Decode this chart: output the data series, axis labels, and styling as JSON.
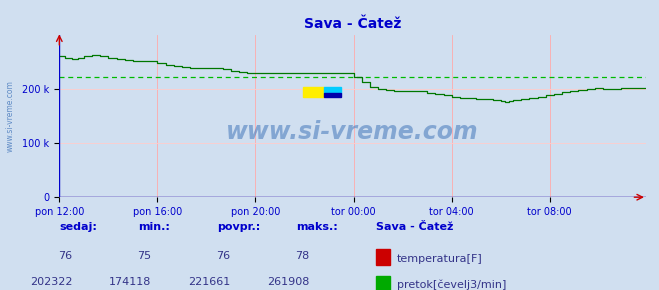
{
  "title": "Sava - Čatež",
  "title_color": "#0000cc",
  "bg_color": "#d0dff0",
  "x_labels": [
    "pon 12:00",
    "pon 16:00",
    "pon 20:00",
    "tor 00:00",
    "tor 04:00",
    "tor 08:00"
  ],
  "ylim": [
    0,
    300000
  ],
  "y_tick_vals": [
    0,
    100000,
    200000
  ],
  "y_tick_labels": [
    "0",
    "100 k",
    "200 k"
  ],
  "grid_color_v": "#ffaaaa",
  "grid_color_h": "#ffcccc",
  "avg_line_color": "#00bb00",
  "avg_line_value": 221661,
  "watermark": "www.si-vreme.com",
  "watermark_color": "#4477bb",
  "line_color_flow": "#007700",
  "line_color_temp": "#cc0000",
  "axis_color": "#0000cc",
  "arrow_color": "#cc0000",
  "sidebar_text": "www.si-vreme.com",
  "sidebar_color": "#4477bb",
  "legend_title": "Sava - Čatež",
  "legend_title_color": "#0000cc",
  "label_color": "#0000cc",
  "stats_labels": [
    "sedaj:",
    "min.:",
    "povpr.:",
    "maks.:"
  ],
  "stats_temp": [
    "76",
    "75",
    "76",
    "78"
  ],
  "stats_flow": [
    "202322",
    "174118",
    "221661",
    "261908"
  ],
  "legend_temp": "temperatura[F]",
  "legend_flow": "pretok[čevelj3/min]"
}
